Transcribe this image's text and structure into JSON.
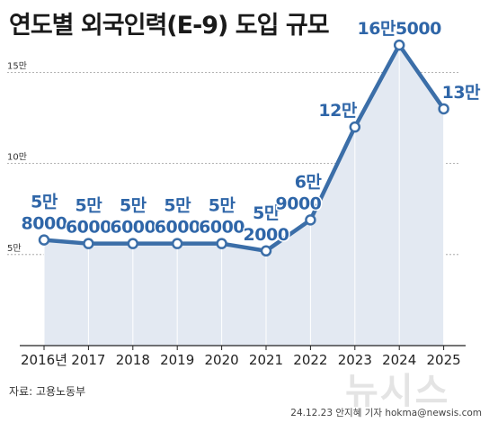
{
  "title": "연도별 외국인력(E-9) 도입 규모",
  "source": "자료: 고용노동부",
  "credit": "24.12.23 안지혜 기자  hokma@newsis.com",
  "watermark": "뉴시스",
  "chart_data": {
    "type": "area",
    "title": "연도별 외국인력(E-9) 도입 규모",
    "categories": [
      "2016년",
      "2017",
      "2018",
      "2019",
      "2020",
      "2021",
      "2022",
      "2023",
      "2024",
      "2025"
    ],
    "values": [
      58000,
      56000,
      56000,
      56000,
      56000,
      52000,
      69000,
      120000,
      165000,
      130000
    ],
    "data_labels": [
      [
        "5만",
        "8000"
      ],
      [
        "5만",
        "6000"
      ],
      [
        "5만",
        "6000"
      ],
      [
        "5만",
        "6000"
      ],
      [
        "5만",
        "6000"
      ],
      [
        "5만",
        "2000"
      ],
      [
        "6만",
        "9000"
      ],
      [
        "12만"
      ],
      [
        "16만5000"
      ],
      [
        "13만"
      ]
    ],
    "yticks": [
      {
        "value": 50000,
        "label": "5만"
      },
      {
        "value": 100000,
        "label": "10만"
      },
      {
        "value": 150000,
        "label": "15만"
      }
    ],
    "ylim": [
      0,
      170000
    ],
    "grid": "horizontal dashed",
    "colors": {
      "line": "#3b6ea8",
      "fill": "#e3e9f2",
      "marker_fill": "#ffffff",
      "label": "#2f66a8"
    }
  }
}
